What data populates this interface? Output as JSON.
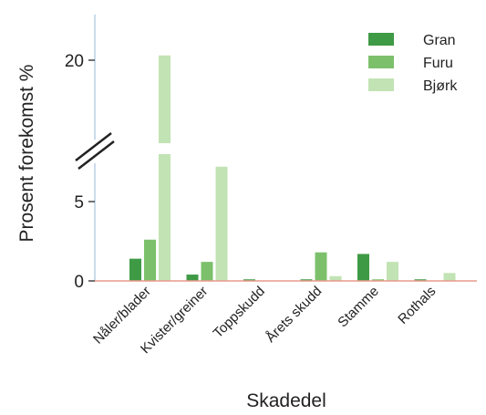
{
  "chart_data": {
    "type": "bar",
    "title": "",
    "xlabel": "Skadedel",
    "ylabel": "Prosent forekomst %",
    "categories": [
      "Nåler/blader",
      "Kvister/greiner",
      "Toppskudd",
      "Årets skudd",
      "Stamme",
      "Rothals"
    ],
    "series": [
      {
        "name": "Gran",
        "color": "#3f9a45",
        "values": [
          1.4,
          0.4,
          0.1,
          0.1,
          1.7,
          0.1
        ]
      },
      {
        "name": "Furu",
        "color": "#7cc06c",
        "values": [
          2.6,
          1.2,
          0.0,
          1.8,
          0.1,
          0.0
        ]
      },
      {
        "name": "Bjørk",
        "color": "#c2e3b4",
        "values": [
          20.3,
          7.2,
          0.0,
          0.3,
          1.2,
          0.5
        ]
      }
    ],
    "yticks": [
      "0",
      "5",
      "20"
    ],
    "ylim_lower": [
      0,
      7.5
    ],
    "ylim_upper": [
      17.5,
      22.5
    ],
    "axis_break": true,
    "grid": false,
    "legend_position": "top-right"
  }
}
